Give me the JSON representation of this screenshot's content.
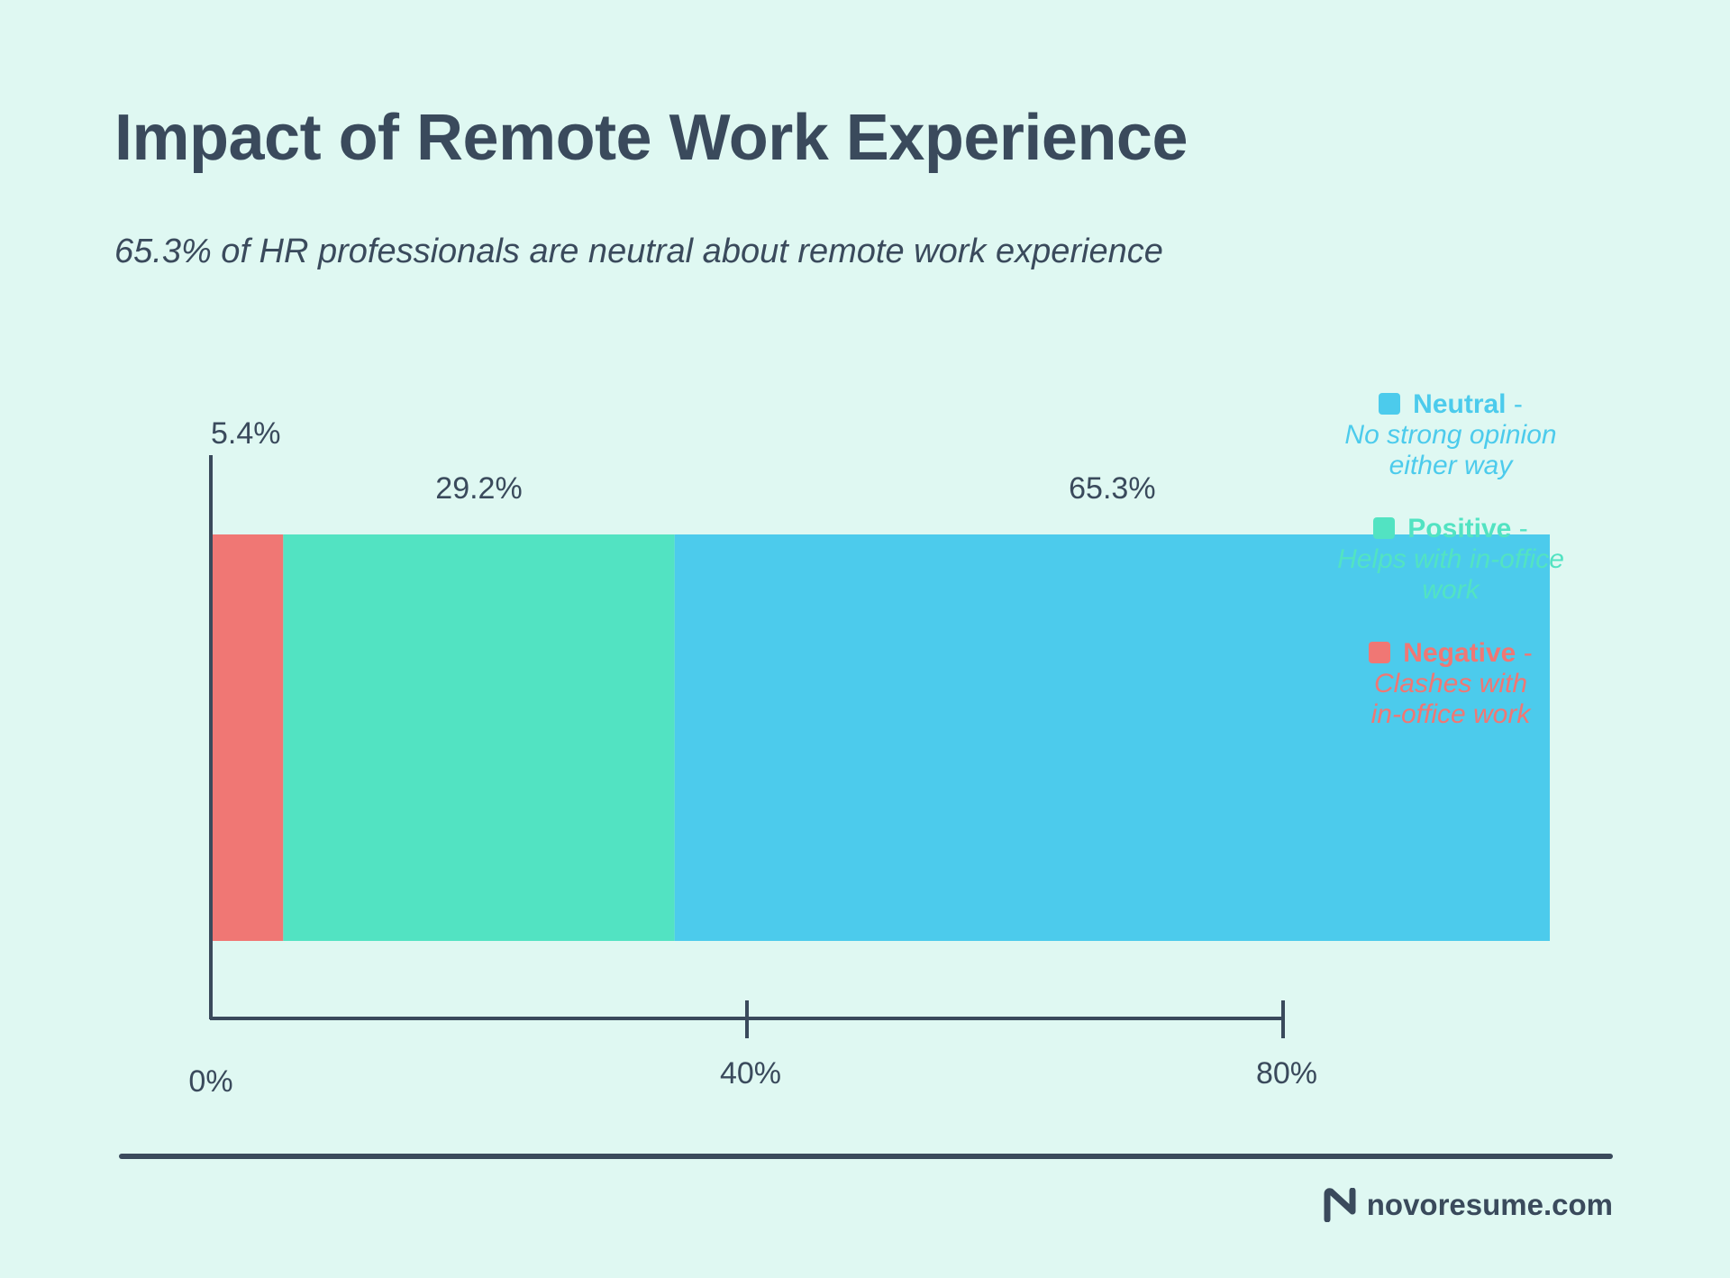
{
  "title": "Impact of Remote Work Experience",
  "subtitle": "65.3% of HR professionals are neutral about remote work experience",
  "brand": "novoresume.com",
  "colors": {
    "background": "#dff8f2",
    "text": "#3a4a5c",
    "negative": "#f07774",
    "positive": "#52e3c2",
    "neutral": "#4ccbec"
  },
  "chart_data": {
    "type": "bar",
    "orientation": "horizontal",
    "stacked": true,
    "series": [
      {
        "name": "Negative",
        "value": 5.4,
        "label": "5.4%",
        "color": "#f07774"
      },
      {
        "name": "Positive",
        "value": 29.2,
        "label": "29.2%",
        "color": "#52e3c2"
      },
      {
        "name": "Neutral",
        "value": 65.3,
        "label": "65.3%",
        "color": "#4ccbec"
      }
    ],
    "xlim": [
      0,
      80
    ],
    "xticks": [
      {
        "value": 0,
        "label": "0%"
      },
      {
        "value": 40,
        "label": "40%"
      },
      {
        "value": 80,
        "label": "80%"
      }
    ],
    "grid": false,
    "legend_position": "right"
  },
  "legend": [
    {
      "name": "Neutral",
      "suffix": " -",
      "desc": "No strong opinion\neither way",
      "color": "#4ccbec"
    },
    {
      "name": "Positive",
      "suffix": " -",
      "desc": "Helps with in-office\nwork",
      "color": "#52e3c2"
    },
    {
      "name": "Negative",
      "suffix": " -",
      "desc": "Clashes with\nin-office work",
      "color": "#f07774"
    }
  ]
}
